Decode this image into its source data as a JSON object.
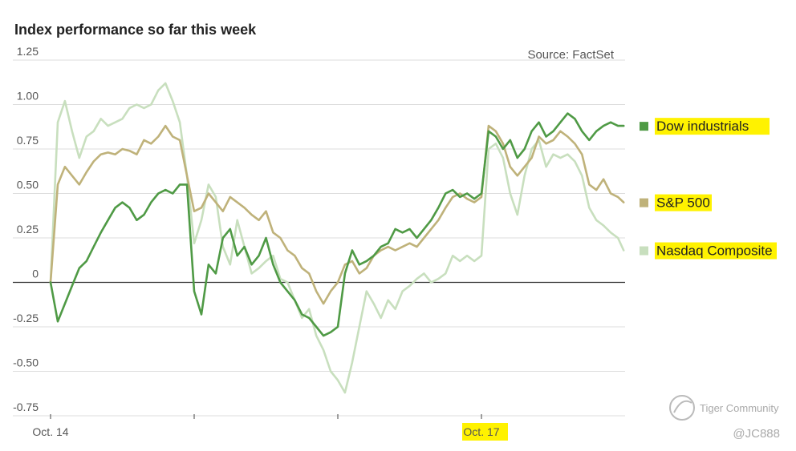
{
  "chart_data": {
    "type": "line",
    "title": "Index performance so far this week",
    "source": "Source: FactSet",
    "xlabel": "",
    "ylabel": "",
    "ylim": [
      -0.75,
      1.25
    ],
    "y_ticks": [
      1.25,
      1.0,
      0.75,
      0.5,
      0.25,
      0,
      -0.25,
      -0.5,
      -0.75
    ],
    "y_tick_labels": [
      "1.25",
      "1.00",
      "0.75",
      "0.50",
      "0.25",
      "0",
      "-0.25",
      "-0.50",
      "-0.75"
    ],
    "x_range": [
      0,
      4
    ],
    "x_ticks": [
      0,
      1,
      2,
      3
    ],
    "x_tick_labels": [
      "Oct. 14",
      "",
      "",
      "Oct. 17"
    ],
    "highlighted_x_labels": [
      "Oct. 17"
    ],
    "grid": true,
    "zero_line": true,
    "legend_position": "right",
    "series": [
      {
        "name": "Nasdaq Composite",
        "color": "#c8dfbe",
        "highlight": true,
        "x": [
          0,
          0.05,
          0.1,
          0.15,
          0.2,
          0.25,
          0.3,
          0.35,
          0.4,
          0.45,
          0.5,
          0.55,
          0.6,
          0.65,
          0.7,
          0.75,
          0.8,
          0.85,
          0.9,
          0.95,
          1.0,
          1.05,
          1.1,
          1.15,
          1.2,
          1.25,
          1.3,
          1.35,
          1.4,
          1.45,
          1.5,
          1.55,
          1.6,
          1.65,
          1.7,
          1.75,
          1.8,
          1.85,
          1.9,
          1.95,
          2.0,
          2.05,
          2.1,
          2.15,
          2.2,
          2.25,
          2.3,
          2.35,
          2.4,
          2.45,
          2.5,
          2.55,
          2.6,
          2.65,
          2.7,
          2.75,
          2.8,
          2.85,
          2.9,
          2.95,
          3.0,
          3.05,
          3.1,
          3.15,
          3.2,
          3.25,
          3.3,
          3.35,
          3.4,
          3.45,
          3.5,
          3.55,
          3.6,
          3.65,
          3.7,
          3.75,
          3.8,
          3.85,
          3.9,
          3.95,
          3.99
        ],
        "values": [
          0.0,
          0.9,
          1.02,
          0.85,
          0.7,
          0.82,
          0.85,
          0.92,
          0.88,
          0.9,
          0.92,
          0.98,
          1.0,
          0.98,
          1.0,
          1.08,
          1.12,
          1.02,
          0.9,
          0.6,
          0.22,
          0.35,
          0.55,
          0.48,
          0.2,
          0.1,
          0.35,
          0.2,
          0.05,
          0.08,
          0.12,
          0.15,
          0.02,
          0.0,
          -0.1,
          -0.2,
          -0.15,
          -0.3,
          -0.38,
          -0.5,
          -0.55,
          -0.62,
          -0.45,
          -0.25,
          -0.05,
          -0.12,
          -0.2,
          -0.1,
          -0.15,
          -0.05,
          -0.02,
          0.02,
          0.05,
          0.0,
          0.02,
          0.05,
          0.15,
          0.12,
          0.15,
          0.12,
          0.15,
          0.75,
          0.78,
          0.7,
          0.5,
          0.38,
          0.6,
          0.75,
          0.8,
          0.65,
          0.72,
          0.7,
          0.72,
          0.68,
          0.6,
          0.42,
          0.35,
          0.32,
          0.28,
          0.25,
          0.18
        ]
      },
      {
        "name": "S&P 500",
        "color": "#bfb27a",
        "highlight": true,
        "x": [
          0,
          0.05,
          0.1,
          0.15,
          0.2,
          0.25,
          0.3,
          0.35,
          0.4,
          0.45,
          0.5,
          0.55,
          0.6,
          0.65,
          0.7,
          0.75,
          0.8,
          0.85,
          0.9,
          0.95,
          1.0,
          1.05,
          1.1,
          1.15,
          1.2,
          1.25,
          1.3,
          1.35,
          1.4,
          1.45,
          1.5,
          1.55,
          1.6,
          1.65,
          1.7,
          1.75,
          1.8,
          1.85,
          1.9,
          1.95,
          2.0,
          2.05,
          2.1,
          2.15,
          2.2,
          2.25,
          2.3,
          2.35,
          2.4,
          2.45,
          2.5,
          2.55,
          2.6,
          2.65,
          2.7,
          2.75,
          2.8,
          2.85,
          2.9,
          2.95,
          3.0,
          3.05,
          3.1,
          3.15,
          3.2,
          3.25,
          3.3,
          3.35,
          3.4,
          3.45,
          3.5,
          3.55,
          3.6,
          3.65,
          3.7,
          3.75,
          3.8,
          3.85,
          3.9,
          3.95,
          3.99
        ],
        "values": [
          0.0,
          0.55,
          0.65,
          0.6,
          0.55,
          0.62,
          0.68,
          0.72,
          0.73,
          0.72,
          0.75,
          0.74,
          0.72,
          0.8,
          0.78,
          0.82,
          0.88,
          0.82,
          0.8,
          0.6,
          0.4,
          0.42,
          0.5,
          0.45,
          0.4,
          0.48,
          0.45,
          0.42,
          0.38,
          0.35,
          0.4,
          0.28,
          0.25,
          0.18,
          0.15,
          0.08,
          0.05,
          -0.05,
          -0.12,
          -0.05,
          0.0,
          0.1,
          0.12,
          0.05,
          0.08,
          0.15,
          0.18,
          0.2,
          0.18,
          0.2,
          0.22,
          0.2,
          0.25,
          0.3,
          0.35,
          0.42,
          0.48,
          0.5,
          0.47,
          0.45,
          0.48,
          0.88,
          0.85,
          0.78,
          0.65,
          0.6,
          0.65,
          0.7,
          0.82,
          0.78,
          0.8,
          0.85,
          0.82,
          0.78,
          0.72,
          0.55,
          0.52,
          0.58,
          0.5,
          0.48,
          0.45
        ]
      },
      {
        "name": "Dow industrials",
        "color": "#4f9a45",
        "highlight": true,
        "x": [
          0,
          0.05,
          0.1,
          0.15,
          0.2,
          0.25,
          0.3,
          0.35,
          0.4,
          0.45,
          0.5,
          0.55,
          0.6,
          0.65,
          0.7,
          0.75,
          0.8,
          0.85,
          0.9,
          0.95,
          1.0,
          1.05,
          1.1,
          1.15,
          1.2,
          1.25,
          1.3,
          1.35,
          1.4,
          1.45,
          1.5,
          1.55,
          1.6,
          1.65,
          1.7,
          1.75,
          1.8,
          1.85,
          1.9,
          1.95,
          2.0,
          2.05,
          2.1,
          2.15,
          2.2,
          2.25,
          2.3,
          2.35,
          2.4,
          2.45,
          2.5,
          2.55,
          2.6,
          2.65,
          2.7,
          2.75,
          2.8,
          2.85,
          2.9,
          2.95,
          3.0,
          3.05,
          3.1,
          3.15,
          3.2,
          3.25,
          3.3,
          3.35,
          3.4,
          3.45,
          3.5,
          3.55,
          3.6,
          3.65,
          3.7,
          3.75,
          3.8,
          3.85,
          3.9,
          3.95,
          3.99
        ],
        "values": [
          0.0,
          -0.22,
          -0.12,
          -0.02,
          0.08,
          0.12,
          0.2,
          0.28,
          0.35,
          0.42,
          0.45,
          0.42,
          0.35,
          0.38,
          0.45,
          0.5,
          0.52,
          0.5,
          0.55,
          0.55,
          -0.05,
          -0.18,
          0.1,
          0.05,
          0.25,
          0.3,
          0.15,
          0.2,
          0.1,
          0.15,
          0.25,
          0.1,
          0.0,
          -0.05,
          -0.1,
          -0.18,
          -0.2,
          -0.25,
          -0.3,
          -0.28,
          -0.25,
          0.05,
          0.18,
          0.1,
          0.12,
          0.15,
          0.2,
          0.22,
          0.3,
          0.28,
          0.3,
          0.25,
          0.3,
          0.35,
          0.42,
          0.5,
          0.52,
          0.48,
          0.5,
          0.47,
          0.5,
          0.85,
          0.82,
          0.75,
          0.8,
          0.7,
          0.75,
          0.85,
          0.9,
          0.82,
          0.85,
          0.9,
          0.95,
          0.92,
          0.85,
          0.8,
          0.85,
          0.88,
          0.9,
          0.88,
          0.88
        ]
      }
    ],
    "legend_order": [
      "Dow industrials",
      "S&P 500",
      "Nasdaq Composite"
    ],
    "highlight_color": "#fff200"
  },
  "watermark": {
    "brand": "Tiger Community",
    "handle": "@JC888"
  }
}
